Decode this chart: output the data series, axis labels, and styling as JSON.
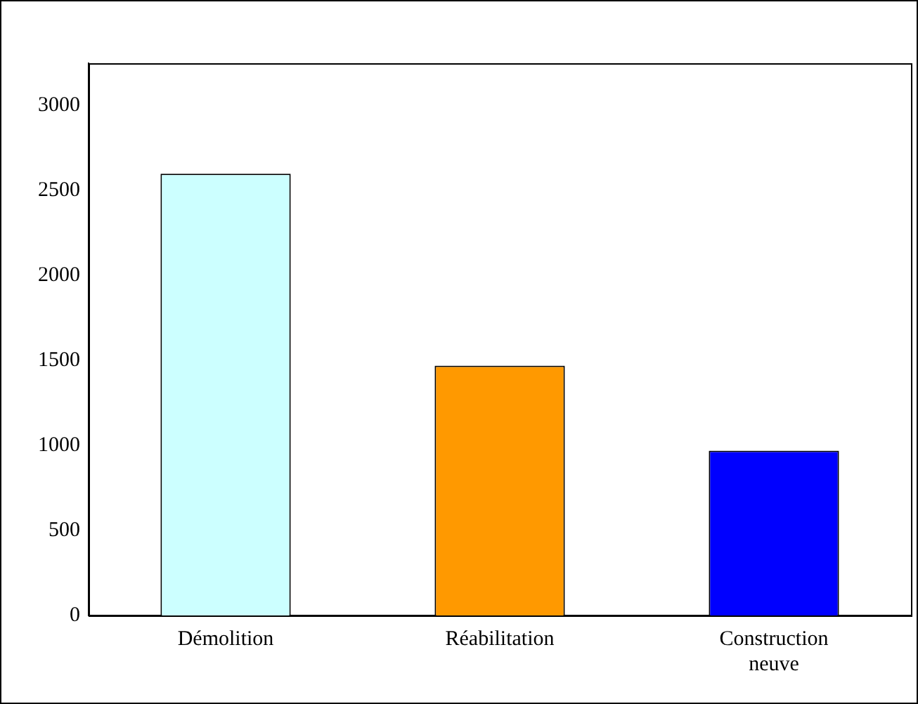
{
  "chart_data": {
    "type": "bar",
    "categories": [
      "Démolition",
      "Réabilitation",
      "Construction neuve"
    ],
    "values": [
      2600,
      1470,
      970
    ],
    "colors": [
      "#ccffff",
      "#ff9900",
      "#0000ff"
    ],
    "ylim": [
      0,
      3250
    ],
    "yticks": [
      0,
      500,
      1000,
      1500,
      2000,
      2500,
      3000
    ],
    "grid": false,
    "legend": false
  }
}
